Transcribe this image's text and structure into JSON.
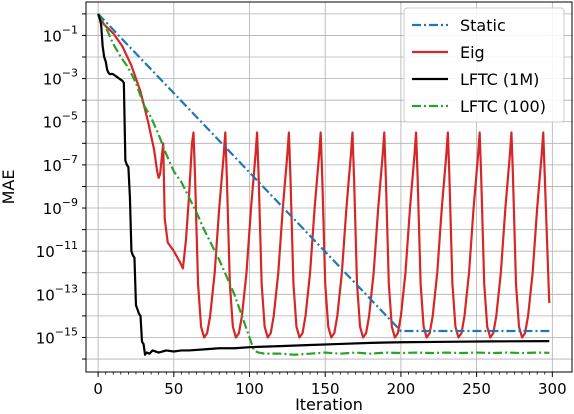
{
  "chart_data": {
    "type": "line",
    "xlabel": "Iteration",
    "ylabel": "MAE",
    "xlim": [
      -8,
      313
    ],
    "ylim_log10": [
      -16.6,
      0.55
    ],
    "y_scale": "log",
    "grid": true,
    "legend_placement": "top-right",
    "x_ticks": [
      0,
      50,
      100,
      150,
      200,
      250,
      300
    ],
    "x_tick_labels": [
      "0",
      "50",
      "100",
      "150",
      "200",
      "250",
      "300"
    ],
    "y_ticks_log10": [
      -1,
      -3,
      -5,
      -7,
      -9,
      -11,
      -13,
      -15
    ],
    "y_tick_labels": [
      {
        "base": "10",
        "exp": "−1"
      },
      {
        "base": "10",
        "exp": "−3"
      },
      {
        "base": "10",
        "exp": "−5"
      },
      {
        "base": "10",
        "exp": "−7"
      },
      {
        "base": "10",
        "exp": "−9"
      },
      {
        "base": "10",
        "exp": "−11"
      },
      {
        "base": "10",
        "exp": "−13"
      },
      {
        "base": "10",
        "exp": "−15"
      }
    ],
    "series": [
      {
        "name": "Static",
        "color": "#1f77b4",
        "dash": "dashdot",
        "points_log10": [
          [
            0,
            0.0
          ],
          [
            200,
            -14.7
          ],
          [
            205,
            -14.7
          ],
          [
            298,
            -14.7
          ]
        ]
      },
      {
        "name": "Eig",
        "color": "#d62728",
        "dash": "solid",
        "points_log10": [
          [
            0,
            0.0
          ],
          [
            4,
            -0.5
          ],
          [
            10,
            -0.9
          ],
          [
            16,
            -1.5
          ],
          [
            22,
            -2.4
          ],
          [
            28,
            -3.6
          ],
          [
            33,
            -5.0
          ],
          [
            37,
            -6.3
          ],
          [
            39,
            -7.3
          ],
          [
            40,
            -7.6
          ],
          [
            41,
            -7.4
          ],
          [
            43,
            -6.0
          ],
          [
            44,
            -9.5
          ],
          [
            46,
            -10.6
          ],
          [
            50,
            -11.0
          ],
          [
            54,
            -11.5
          ],
          [
            56,
            -11.8
          ],
          [
            58,
            -10.5
          ],
          [
            60,
            -8.5
          ],
          [
            62,
            -6.0
          ],
          [
            63,
            -5.5
          ],
          [
            64,
            -7.5
          ],
          [
            66,
            -12.5
          ],
          [
            68,
            -14.5
          ],
          [
            70,
            -15.0
          ],
          [
            72,
            -14.8
          ],
          [
            74,
            -14.0
          ],
          [
            77,
            -12.0
          ],
          [
            80,
            -9.0
          ],
          [
            83,
            -6.5
          ],
          [
            84,
            -5.5
          ],
          [
            85,
            -7.5
          ],
          [
            87,
            -12.5
          ],
          [
            89,
            -14.5
          ],
          [
            91,
            -15.0
          ],
          [
            93,
            -14.8
          ],
          [
            95,
            -14.0
          ],
          [
            98,
            -12.0
          ],
          [
            101,
            -9.0
          ],
          [
            104,
            -6.5
          ],
          [
            105,
            -5.5
          ],
          [
            106,
            -7.5
          ],
          [
            108,
            -12.5
          ],
          [
            110,
            -14.5
          ],
          [
            112,
            -15.0
          ],
          [
            114,
            -14.8
          ],
          [
            116,
            -14.0
          ],
          [
            119,
            -12.0
          ],
          [
            122,
            -9.0
          ],
          [
            125,
            -6.5
          ],
          [
            126,
            -5.5
          ],
          [
            127,
            -7.5
          ],
          [
            129,
            -12.5
          ],
          [
            131,
            -14.5
          ],
          [
            133,
            -15.0
          ],
          [
            135,
            -14.8
          ],
          [
            137,
            -14.0
          ],
          [
            140,
            -12.0
          ],
          [
            143,
            -9.0
          ],
          [
            146,
            -6.5
          ],
          [
            147,
            -5.5
          ],
          [
            148,
            -7.5
          ],
          [
            150,
            -12.5
          ],
          [
            152,
            -14.5
          ],
          [
            154,
            -15.0
          ],
          [
            156,
            -14.8
          ],
          [
            158,
            -14.0
          ],
          [
            161,
            -12.0
          ],
          [
            164,
            -9.0
          ],
          [
            167,
            -6.5
          ],
          [
            168,
            -5.5
          ],
          [
            169,
            -7.5
          ],
          [
            171,
            -12.5
          ],
          [
            173,
            -14.5
          ],
          [
            175,
            -15.0
          ],
          [
            177,
            -14.8
          ],
          [
            179,
            -14.0
          ],
          [
            182,
            -12.0
          ],
          [
            185,
            -9.0
          ],
          [
            188,
            -6.5
          ],
          [
            189,
            -5.5
          ],
          [
            190,
            -7.5
          ],
          [
            192,
            -12.5
          ],
          [
            194,
            -14.5
          ],
          [
            196,
            -15.0
          ],
          [
            198,
            -14.8
          ],
          [
            200,
            -14.0
          ],
          [
            203,
            -12.0
          ],
          [
            206,
            -9.0
          ],
          [
            209,
            -6.5
          ],
          [
            210,
            -5.5
          ],
          [
            211,
            -7.5
          ],
          [
            213,
            -12.5
          ],
          [
            215,
            -14.5
          ],
          [
            217,
            -15.0
          ],
          [
            219,
            -14.8
          ],
          [
            221,
            -14.0
          ],
          [
            224,
            -12.0
          ],
          [
            227,
            -9.0
          ],
          [
            230,
            -6.5
          ],
          [
            231,
            -5.5
          ],
          [
            232,
            -7.5
          ],
          [
            234,
            -12.5
          ],
          [
            236,
            -14.5
          ],
          [
            238,
            -15.0
          ],
          [
            240,
            -14.8
          ],
          [
            242,
            -14.0
          ],
          [
            245,
            -12.0
          ],
          [
            248,
            -9.0
          ],
          [
            251,
            -6.5
          ],
          [
            252,
            -5.5
          ],
          [
            253,
            -7.5
          ],
          [
            255,
            -12.5
          ],
          [
            257,
            -14.5
          ],
          [
            259,
            -15.0
          ],
          [
            261,
            -14.8
          ],
          [
            263,
            -14.0
          ],
          [
            266,
            -12.0
          ],
          [
            269,
            -9.0
          ],
          [
            272,
            -6.5
          ],
          [
            273,
            -5.5
          ],
          [
            274,
            -7.5
          ],
          [
            276,
            -12.5
          ],
          [
            278,
            -14.5
          ],
          [
            280,
            -15.0
          ],
          [
            282,
            -14.8
          ],
          [
            284,
            -14.0
          ],
          [
            287,
            -12.0
          ],
          [
            290,
            -9.0
          ],
          [
            293,
            -6.5
          ],
          [
            294,
            -5.5
          ],
          [
            295,
            -7.5
          ],
          [
            297,
            -11.5
          ],
          [
            298,
            -13.4
          ]
        ]
      },
      {
        "name": "LFTC (1M)",
        "color": "#000000",
        "dash": "solid",
        "points_log10": [
          [
            0,
            0.0
          ],
          [
            1,
            -0.2
          ],
          [
            2,
            -0.5
          ],
          [
            3,
            -1.5
          ],
          [
            4,
            -2.0
          ],
          [
            5,
            -2.2
          ],
          [
            6,
            -2.6
          ],
          [
            7,
            -2.75
          ],
          [
            8,
            -2.8
          ],
          [
            9,
            -2.78
          ],
          [
            10,
            -2.8
          ],
          [
            11,
            -2.85
          ],
          [
            12,
            -2.9
          ],
          [
            13,
            -2.95
          ],
          [
            14,
            -3.0
          ],
          [
            15,
            -3.05
          ],
          [
            16,
            -3.1
          ],
          [
            17,
            -3.2
          ],
          [
            18,
            -6.8
          ],
          [
            19,
            -7.0
          ],
          [
            20,
            -7.1
          ],
          [
            21,
            -8.5
          ],
          [
            22,
            -11.0
          ],
          [
            23,
            -11.2
          ],
          [
            24,
            -11.3
          ],
          [
            25,
            -13.5
          ],
          [
            26,
            -13.7
          ],
          [
            27,
            -13.9
          ],
          [
            28,
            -14.0
          ],
          [
            29,
            -15.2
          ],
          [
            30,
            -15.3
          ],
          [
            31,
            -15.8
          ],
          [
            32,
            -15.7
          ],
          [
            34,
            -15.75
          ],
          [
            36,
            -15.6
          ],
          [
            40,
            -15.7
          ],
          [
            45,
            -15.6
          ],
          [
            50,
            -15.65
          ],
          [
            55,
            -15.6
          ],
          [
            60,
            -15.6
          ],
          [
            70,
            -15.55
          ],
          [
            80,
            -15.5
          ],
          [
            90,
            -15.5
          ],
          [
            100,
            -15.45
          ],
          [
            120,
            -15.4
          ],
          [
            140,
            -15.35
          ],
          [
            160,
            -15.3
          ],
          [
            180,
            -15.25
          ],
          [
            200,
            -15.22
          ],
          [
            230,
            -15.2
          ],
          [
            260,
            -15.18
          ],
          [
            298,
            -15.17
          ]
        ]
      },
      {
        "name": "LFTC (100)",
        "color": "#2ca02c",
        "dash": "dashdot",
        "points_log10": [
          [
            0,
            0.0
          ],
          [
            5,
            -0.6
          ],
          [
            10,
            -1.4
          ],
          [
            15,
            -2.0
          ],
          [
            20,
            -2.5
          ],
          [
            25,
            -3.2
          ],
          [
            30,
            -4.2
          ],
          [
            35,
            -4.8
          ],
          [
            40,
            -5.6
          ],
          [
            45,
            -6.5
          ],
          [
            50,
            -7.3
          ],
          [
            55,
            -7.8
          ],
          [
            60,
            -8.5
          ],
          [
            65,
            -9.2
          ],
          [
            70,
            -10.0
          ],
          [
            75,
            -10.7
          ],
          [
            80,
            -11.4
          ],
          [
            85,
            -12.2
          ],
          [
            90,
            -13.0
          ],
          [
            95,
            -14.0
          ],
          [
            98,
            -14.6
          ],
          [
            100,
            -15.0
          ],
          [
            103,
            -15.6
          ],
          [
            106,
            -15.7
          ],
          [
            110,
            -15.75
          ],
          [
            120,
            -15.75
          ],
          [
            130,
            -15.8
          ],
          [
            140,
            -15.75
          ],
          [
            150,
            -15.7
          ],
          [
            160,
            -15.75
          ],
          [
            170,
            -15.7
          ],
          [
            180,
            -15.75
          ],
          [
            190,
            -15.7
          ],
          [
            200,
            -15.72
          ],
          [
            210,
            -15.7
          ],
          [
            220,
            -15.72
          ],
          [
            230,
            -15.7
          ],
          [
            240,
            -15.72
          ],
          [
            250,
            -15.7
          ],
          [
            260,
            -15.72
          ],
          [
            270,
            -15.7
          ],
          [
            280,
            -15.72
          ],
          [
            290,
            -15.7
          ],
          [
            298,
            -15.71
          ]
        ]
      }
    ]
  }
}
